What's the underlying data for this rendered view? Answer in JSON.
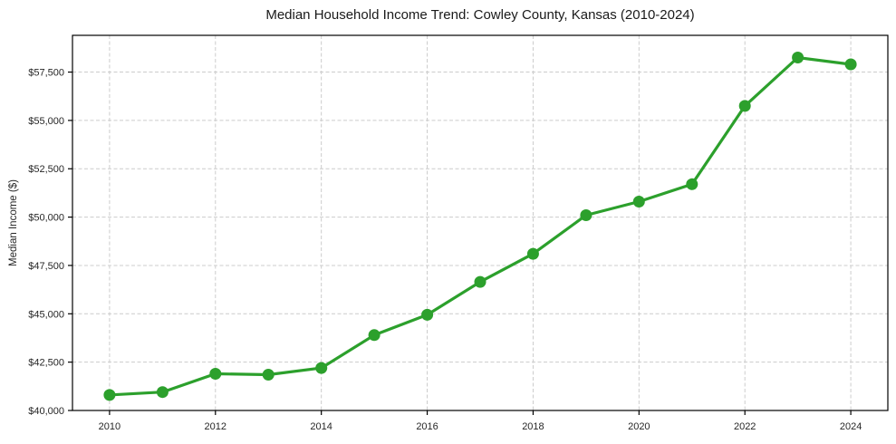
{
  "figure": {
    "background": "#ffffff"
  },
  "chart_data": {
    "type": "line",
    "title": "Median Household Income Trend: Cowley County, Kansas (2010-2024)",
    "xlabel": "",
    "ylabel": "Median Income ($)",
    "x": [
      2010,
      2011,
      2012,
      2013,
      2014,
      2015,
      2016,
      2017,
      2018,
      2019,
      2020,
      2021,
      2022,
      2023,
      2024
    ],
    "values": [
      40800,
      40950,
      41900,
      41850,
      42200,
      43900,
      44950,
      46650,
      48100,
      50100,
      50800,
      51700,
      55750,
      58250,
      57900
    ],
    "xticks": [
      2010,
      2012,
      2014,
      2016,
      2018,
      2020,
      2022,
      2024
    ],
    "xtick_labels": [
      "2010",
      "2012",
      "2014",
      "2016",
      "2018",
      "2020",
      "2022",
      "2024"
    ],
    "yticks": [
      40000,
      42500,
      45000,
      47500,
      50000,
      52500,
      55000,
      57500
    ],
    "ytick_labels": [
      "$40,000",
      "$42,500",
      "$45,000",
      "$47,500",
      "$50,000",
      "$52,500",
      "$55,000",
      "$57,500"
    ],
    "xlim": [
      2009.3,
      2024.7
    ],
    "ylim": [
      40000,
      59400
    ],
    "grid": true,
    "grid_style": "dashed",
    "legend": false,
    "marker": "circle",
    "line_color": "#2ca02c",
    "marker_color": "#2ca02c"
  },
  "style": {
    "grid_color": "#cccccc",
    "spine_color": "#000000",
    "tick_color": "#262626",
    "tick_label_color": "#262626",
    "title_color": "#1a1a1a"
  }
}
